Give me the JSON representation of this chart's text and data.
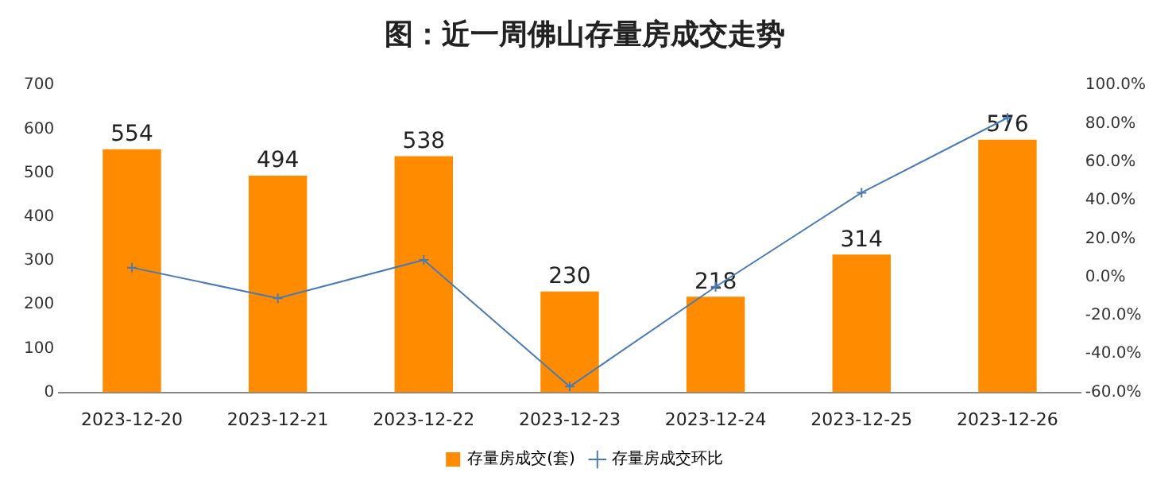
{
  "chart_data": {
    "type": "bar",
    "title": "图：近一周佛山存量房成交走势",
    "categories": [
      "2023-12-20",
      "2023-12-21",
      "2023-12-22",
      "2023-12-23",
      "2023-12-24",
      "2023-12-25",
      "2023-12-26"
    ],
    "series": [
      {
        "name": "存量房成交(套)",
        "color": "#ff8c00",
        "values": [
          554,
          494,
          538,
          230,
          218,
          314,
          576
        ],
        "value_labels": [
          "554",
          "494",
          "538",
          "230",
          "218",
          "314",
          "576"
        ]
      },
      {
        "name": "存量房成交环比",
        "type": "line",
        "axis": "y2",
        "color": "#4a7ab5",
        "marker": "cross",
        "values": [
          5,
          -11,
          9,
          -57,
          -5,
          44,
          83
        ]
      }
    ],
    "ylim": [
      0,
      700
    ],
    "yticks": [
      0,
      100,
      200,
      300,
      400,
      500,
      600,
      700
    ],
    "y2lim": [
      -60,
      100
    ],
    "y2ticks": [
      {
        "value": -60,
        "label": "-60.0%"
      },
      {
        "value": -40,
        "label": "-40.0%"
      },
      {
        "value": -20,
        "label": "-20.0%"
      },
      {
        "value": 0,
        "label": "0.0%"
      },
      {
        "value": 20,
        "label": "20.0%"
      },
      {
        "value": 40,
        "label": "40.0%"
      },
      {
        "value": 60,
        "label": "60.0%"
      },
      {
        "value": 80,
        "label": "80.0%"
      },
      {
        "value": 100,
        "label": "100.0%"
      }
    ],
    "legend": "bottom"
  }
}
